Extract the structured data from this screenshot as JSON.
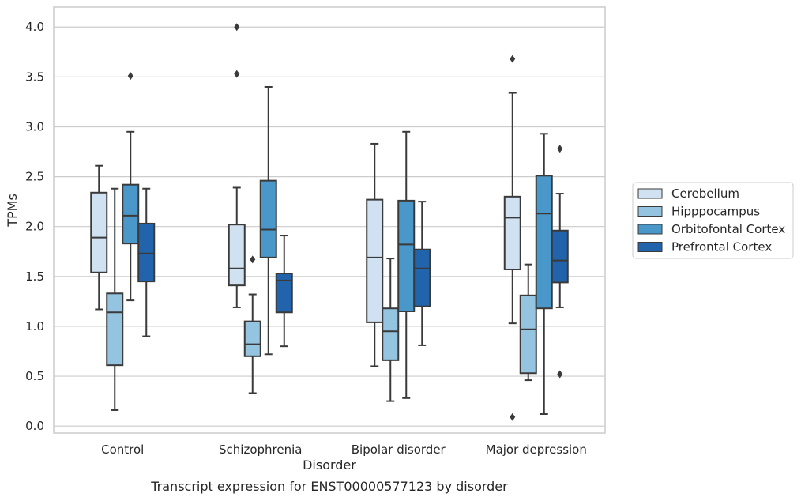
{
  "caption": "Transcript expression for ENST00000577123 by disorder",
  "colors": {
    "Cerebellum": "#d0e1f2",
    "Hipppocampus": "#94c4df",
    "Orbitofontal Cortex": "#4a98c9",
    "Prefrontal Cortex": "#2164ab",
    "line": "#3a3a3a",
    "grid": "#cccccc"
  },
  "chart_data": {
    "type": "boxplot",
    "xlabel": "Disorder",
    "ylabel": "TPMs",
    "ylim": [
      -0.07,
      4.2
    ],
    "yticks": [
      0.0,
      0.5,
      1.0,
      1.5,
      2.0,
      2.5,
      3.0,
      3.5,
      4.0
    ],
    "ytick_labels": [
      "0.0",
      "0.5",
      "1.0",
      "1.5",
      "2.0",
      "2.5",
      "3.0",
      "3.5",
      "4.0"
    ],
    "grid": "horizontal",
    "legend_position": "right",
    "categories": [
      "Control",
      "Schizophrenia",
      "Bipolar disorder",
      "Major depression"
    ],
    "series": [
      {
        "name": "Cerebellum",
        "boxes": [
          {
            "whislo": 1.17,
            "q1": 1.54,
            "med": 1.89,
            "q3": 2.34,
            "whishi": 2.61,
            "fliers": []
          },
          {
            "whislo": 1.19,
            "q1": 1.41,
            "med": 1.58,
            "q3": 2.02,
            "whishi": 2.39,
            "fliers": [
              4.0,
              3.53
            ]
          },
          {
            "whislo": 0.6,
            "q1": 1.04,
            "med": 1.69,
            "q3": 2.27,
            "whishi": 2.83,
            "fliers": []
          },
          {
            "whislo": 1.03,
            "q1": 1.57,
            "med": 2.09,
            "q3": 2.3,
            "whishi": 3.34,
            "fliers": [
              3.68,
              0.09
            ]
          }
        ]
      },
      {
        "name": "Hipppocampus",
        "boxes": [
          {
            "whislo": 0.16,
            "q1": 0.61,
            "med": 1.14,
            "q3": 1.33,
            "whishi": 2.38,
            "fliers": []
          },
          {
            "whislo": 0.33,
            "q1": 0.7,
            "med": 0.82,
            "q3": 1.05,
            "whishi": 1.32,
            "fliers": [
              1.67
            ]
          },
          {
            "whislo": 0.25,
            "q1": 0.66,
            "med": 0.95,
            "q3": 1.18,
            "whishi": 1.68,
            "fliers": []
          },
          {
            "whislo": 0.46,
            "q1": 0.53,
            "med": 0.97,
            "q3": 1.31,
            "whishi": 1.62,
            "fliers": []
          }
        ]
      },
      {
        "name": "Orbitofontal Cortex",
        "boxes": [
          {
            "whislo": 1.26,
            "q1": 1.83,
            "med": 2.11,
            "q3": 2.42,
            "whishi": 2.95,
            "fliers": [
              3.51
            ]
          },
          {
            "whislo": 0.72,
            "q1": 1.69,
            "med": 1.97,
            "q3": 2.46,
            "whishi": 3.4,
            "fliers": []
          },
          {
            "whislo": 0.28,
            "q1": 1.15,
            "med": 1.82,
            "q3": 2.26,
            "whishi": 2.95,
            "fliers": []
          },
          {
            "whislo": 0.12,
            "q1": 1.18,
            "med": 2.13,
            "q3": 2.51,
            "whishi": 2.93,
            "fliers": []
          }
        ]
      },
      {
        "name": "Prefrontal Cortex",
        "boxes": [
          {
            "whislo": 0.9,
            "q1": 1.45,
            "med": 1.73,
            "q3": 2.03,
            "whishi": 2.38,
            "fliers": []
          },
          {
            "whislo": 0.8,
            "q1": 1.14,
            "med": 1.46,
            "q3": 1.53,
            "whishi": 1.91,
            "fliers": []
          },
          {
            "whislo": 0.81,
            "q1": 1.2,
            "med": 1.58,
            "q3": 1.77,
            "whishi": 2.25,
            "fliers": []
          },
          {
            "whislo": 1.19,
            "q1": 1.44,
            "med": 1.66,
            "q3": 1.96,
            "whishi": 2.33,
            "fliers": [
              2.78,
              0.52
            ]
          }
        ]
      }
    ]
  }
}
